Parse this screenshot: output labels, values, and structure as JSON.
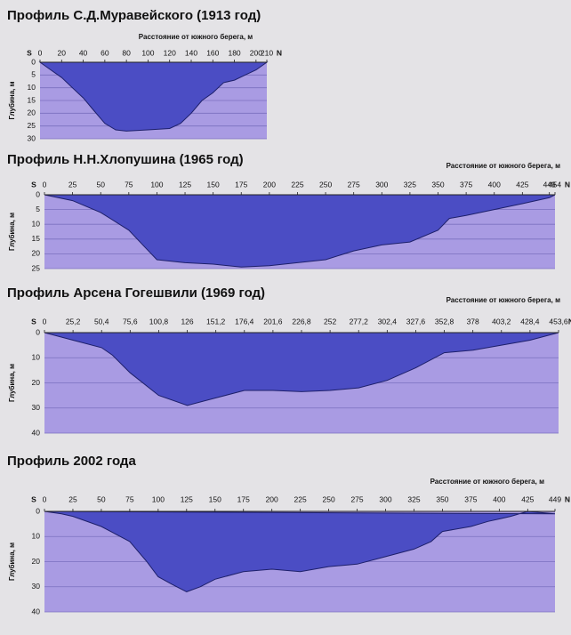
{
  "chart_data": [
    {
      "type": "area",
      "title": "Профиль С.Д.Муравейского (1913 год)",
      "x_label": "Расстояние от южного берега, м",
      "y_label": "Глубина, м",
      "start_label": "S",
      "end_label": "N",
      "x": [
        0,
        10,
        20,
        30,
        40,
        50,
        60,
        70,
        80,
        100,
        120,
        130,
        140,
        150,
        160,
        170,
        180,
        190,
        200,
        210
      ],
      "values": [
        0,
        3,
        6,
        10,
        14,
        19,
        24,
        26.5,
        27,
        26.5,
        26,
        24,
        20,
        15,
        12,
        8,
        7,
        5,
        3,
        0
      ],
      "color": "#4b4dc4",
      "background": "#a99be3",
      "y_inverted": true,
      "grid": true,
      "xlim": [
        0,
        210
      ],
      "xticks": [
        0,
        20,
        40,
        60,
        80,
        100,
        120,
        140,
        160,
        180,
        200,
        210
      ],
      "ylim": [
        0,
        30
      ],
      "yticks": [
        0,
        5,
        10,
        15,
        20,
        25,
        30
      ]
    },
    {
      "type": "area",
      "title": "Профиль Н.Н.Хлопушина (1965 год)",
      "x_label": "Расстояние от южного берега, м",
      "y_label": "Глубина, м",
      "start_label": "S",
      "end_label": "N",
      "x": [
        0,
        25,
        50,
        75,
        90,
        100,
        125,
        150,
        175,
        200,
        225,
        250,
        275,
        300,
        325,
        350,
        360,
        375,
        400,
        425,
        449,
        454
      ],
      "values": [
        0,
        2,
        6,
        12,
        18,
        22,
        23,
        23.5,
        24.5,
        24,
        23,
        22,
        19,
        17,
        16,
        12,
        8,
        7,
        5,
        3,
        1,
        0
      ],
      "color": "#4b4dc4",
      "background": "#a99be3",
      "y_inverted": true,
      "grid": true,
      "xlim": [
        0,
        454
      ],
      "xticks": [
        0,
        25,
        50,
        75,
        100,
        125,
        150,
        175,
        200,
        225,
        250,
        275,
        300,
        325,
        350,
        375,
        400,
        425,
        449,
        454
      ],
      "ylim": [
        0,
        25
      ],
      "yticks": [
        0,
        5,
        10,
        15,
        20,
        25
      ]
    },
    {
      "type": "area",
      "title": "Профиль Арсена Гогешвили (1969 год)",
      "x_label": "Расстояние от южного берега, м",
      "y_label": "Глубина, м",
      "start_label": "S",
      "end_label": "N",
      "x": [
        0,
        25.2,
        50.4,
        60,
        75.6,
        100.8,
        126,
        151.2,
        176.4,
        201.6,
        226.8,
        252,
        277.2,
        302.4,
        327.6,
        352.8,
        378,
        403.2,
        428.4,
        453.6
      ],
      "values": [
        0,
        3,
        6,
        9,
        16,
        25,
        29,
        26,
        23,
        23,
        23.5,
        23,
        22,
        19,
        14,
        8,
        7,
        5,
        3,
        0
      ],
      "color": "#4b4dc4",
      "background": "#a99be3",
      "y_inverted": true,
      "grid": true,
      "xlim": [
        0,
        453.6
      ],
      "xticks": [
        0,
        {
          "value": 25.2,
          "label": "25,2"
        },
        {
          "value": 50.4,
          "label": "50,4"
        },
        {
          "value": 75.6,
          "label": "75,6"
        },
        {
          "value": 100.8,
          "label": "100,8"
        },
        126,
        {
          "value": 151.2,
          "label": "151,2"
        },
        {
          "value": 176.4,
          "label": "176,4"
        },
        {
          "value": 201.6,
          "label": "201,6"
        },
        {
          "value": 226.8,
          "label": "226,8"
        },
        252,
        {
          "value": 277.2,
          "label": "277,2"
        },
        {
          "value": 302.4,
          "label": "302,4"
        },
        {
          "value": 327.6,
          "label": "327,6"
        },
        {
          "value": 352.8,
          "label": "352,8"
        },
        378,
        {
          "value": 403.2,
          "label": "403,2"
        },
        {
          "value": 428.4,
          "label": "428,4"
        },
        {
          "value": 453.6,
          "label": "453,6"
        }
      ],
      "ylim": [
        0,
        40
      ],
      "yticks": [
        0,
        10,
        20,
        30,
        40
      ]
    },
    {
      "type": "area",
      "title": "Профиль 2002 года",
      "x_label": "Расстояние от южного берега, м",
      "y_label": "Глубина, м",
      "start_label": "S",
      "end_label": "N",
      "x": [
        0,
        15,
        25,
        50,
        75,
        90,
        100,
        112,
        125,
        137,
        150,
        175,
        200,
        225,
        250,
        275,
        300,
        325,
        340,
        350,
        375,
        390,
        400,
        410,
        425,
        449
      ],
      "values": [
        0,
        1,
        2,
        6,
        12,
        20,
        26,
        29,
        32,
        30,
        27,
        24,
        23,
        24,
        22,
        21,
        18,
        15,
        12,
        8,
        6,
        4,
        3,
        2,
        0,
        1
      ],
      "color": "#4b4dc4",
      "background": "#a99be3",
      "y_inverted": true,
      "grid": true,
      "xlim": [
        0,
        449
      ],
      "xticks": [
        0,
        25,
        50,
        75,
        100,
        125,
        150,
        175,
        200,
        225,
        250,
        275,
        300,
        325,
        350,
        375,
        400,
        425,
        449
      ],
      "ylim": [
        0,
        40
      ],
      "yticks": [
        0,
        10,
        20,
        30,
        40
      ]
    }
  ]
}
